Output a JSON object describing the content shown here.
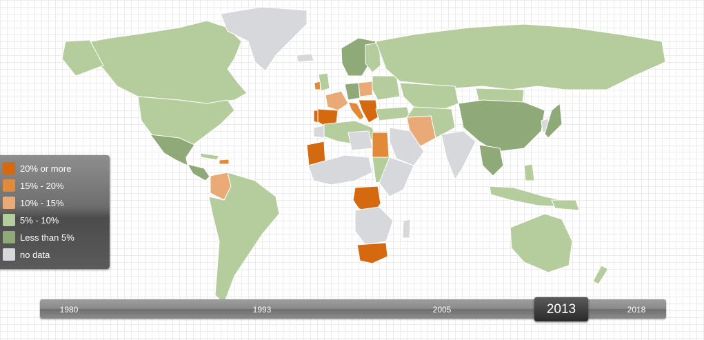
{
  "colors": {
    "c20plus": "#d4690f",
    "c15_20": "#e08a3a",
    "c10_15": "#eaaa78",
    "c5_10": "#b5cc9c",
    "cLess5": "#8faa78",
    "noData": "#d6d8dc"
  },
  "legend": {
    "items": [
      {
        "label": "20% or more",
        "color": "#d4690f"
      },
      {
        "label": "15% - 20%",
        "color": "#e08a3a"
      },
      {
        "label": "10% - 15%",
        "color": "#eaaa78"
      },
      {
        "label": "5% - 10%",
        "color": "#b5cc9c"
      },
      {
        "label": "Less than 5%",
        "color": "#8faa78"
      },
      {
        "label": "no data",
        "color": "#d6d8dc"
      }
    ]
  },
  "timeline": {
    "years": [
      "1980",
      "1993",
      "2005",
      "2018"
    ],
    "selected": "2013"
  }
}
